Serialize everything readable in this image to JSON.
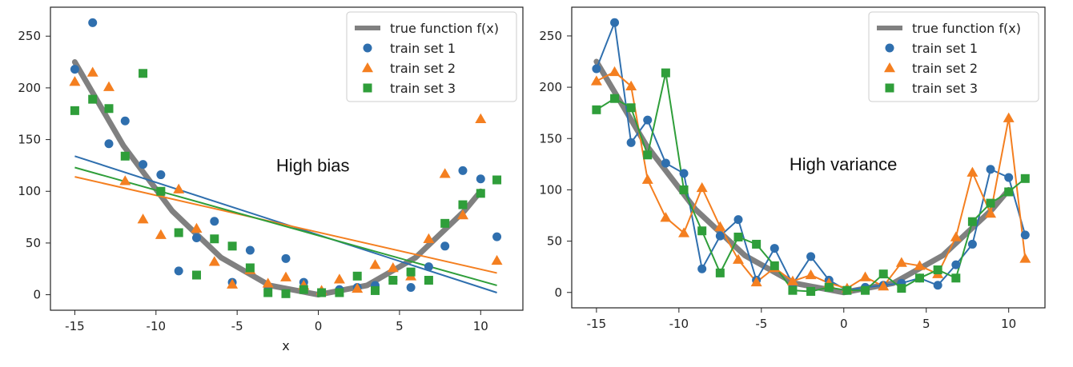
{
  "colors": {
    "true": "#808080",
    "s1": "#2f6fae",
    "s2": "#f47f20",
    "s3": "#2f9e3a"
  },
  "chart_data": [
    {
      "type": "scatter",
      "title": "",
      "xlabel": "x",
      "ylabel": "",
      "xlim": [
        -16.5,
        12.6
      ],
      "ylim": [
        -15,
        278
      ],
      "xticks": [
        -15,
        -10,
        -5,
        0,
        5,
        10
      ],
      "yticks": [
        0,
        50,
        100,
        150,
        200,
        250
      ],
      "annotation": {
        "text": "High bias",
        "x": -2.6,
        "y": 119
      },
      "legend": {
        "location": "top-right",
        "entries": [
          "true function f(x)",
          "train set 1",
          "train set 2",
          "train set 3"
        ]
      },
      "true_function": {
        "name": "true function f(x)",
        "x": [
          -15,
          -12,
          -9,
          -6,
          -3,
          0,
          3,
          6,
          9,
          10
        ],
        "y": [
          225,
          144,
          81,
          36,
          9,
          0,
          9,
          36,
          81,
          100
        ]
      },
      "series": [
        {
          "name": "train set 1",
          "marker": "circle",
          "x": [
            -15,
            -13.9,
            -12.9,
            -11.9,
            -10.8,
            -9.7,
            -8.6,
            -7.5,
            -6.4,
            -5.3,
            -4.2,
            -3.1,
            -2.0,
            -0.9,
            0.2,
            1.3,
            2.4,
            3.5,
            4.6,
            5.7,
            6.8,
            7.8,
            8.9,
            10,
            11
          ],
          "y": [
            218,
            263,
            146,
            168,
            126,
            116,
            23,
            55,
            71,
            12,
            43,
            8,
            35,
            12,
            2,
            5,
            7,
            9,
            14,
            7,
            27,
            47,
            120,
            112,
            56
          ]
        },
        {
          "name": "train set 2",
          "marker": "triangle",
          "x": [
            -15,
            -13.9,
            -12.9,
            -11.9,
            -10.8,
            -9.7,
            -8.6,
            -7.5,
            -6.4,
            -5.3,
            -4.2,
            -3.1,
            -2.0,
            -0.9,
            0.2,
            1.3,
            2.4,
            3.5,
            4.6,
            5.7,
            6.8,
            7.8,
            8.9,
            10,
            11
          ],
          "y": [
            206,
            215,
            201,
            110,
            73,
            58,
            102,
            64,
            32,
            10,
            24,
            11,
            17,
            9,
            4,
            15,
            6,
            29,
            26,
            18,
            54,
            117,
            77,
            170,
            33
          ]
        },
        {
          "name": "train set 3",
          "marker": "square",
          "x": [
            -15,
            -13.9,
            -12.9,
            -11.9,
            -10.8,
            -9.7,
            -8.6,
            -7.5,
            -6.4,
            -5.3,
            -4.2,
            -3.1,
            -2.0,
            -0.9,
            0.2,
            1.3,
            2.4,
            3.5,
            4.6,
            5.7,
            6.8,
            7.8,
            8.9,
            10,
            11
          ],
          "y": [
            178,
            189,
            180,
            134,
            214,
            100,
            60,
            19,
            54,
            47,
            26,
            2,
            1,
            5,
            2,
            2,
            18,
            4,
            14,
            22,
            14,
            69,
            87,
            98,
            111
          ]
        }
      ],
      "fits": [
        {
          "name": "fit set 1",
          "series": "train set 1",
          "x": [
            -15,
            11
          ],
          "y": [
            134,
            2
          ]
        },
        {
          "name": "fit set 2",
          "series": "train set 2",
          "x": [
            -15,
            11
          ],
          "y": [
            114,
            21
          ]
        },
        {
          "name": "fit set 3",
          "series": "train set 3",
          "x": [
            -15,
            11
          ],
          "y": [
            123,
            9
          ]
        }
      ]
    },
    {
      "type": "line",
      "title": "",
      "xlabel": "",
      "ylabel": "",
      "xlim": [
        -16.5,
        12.2
      ],
      "ylim": [
        -15,
        278
      ],
      "xticks": [
        -15,
        -10,
        -5,
        0,
        5,
        10
      ],
      "yticks": [
        0,
        50,
        100,
        150,
        200,
        250
      ],
      "annotation": {
        "text": "High variance",
        "x": -3.3,
        "y": 119
      },
      "legend": {
        "location": "top-right",
        "entries": [
          "true function f(x)",
          "train set 1",
          "train set 2",
          "train set 3"
        ]
      },
      "true_function": {
        "name": "true function f(x)",
        "x": [
          -15,
          -12,
          -9,
          -6,
          -3,
          0,
          3,
          6,
          9,
          10
        ],
        "y": [
          225,
          144,
          81,
          36,
          9,
          0,
          9,
          36,
          81,
          100
        ]
      },
      "series": [
        {
          "name": "train set 1",
          "marker": "circle",
          "x": [
            -15,
            -13.9,
            -12.9,
            -11.9,
            -10.8,
            -9.7,
            -8.6,
            -7.5,
            -6.4,
            -5.3,
            -4.2,
            -3.1,
            -2.0,
            -0.9,
            0.2,
            1.3,
            2.4,
            3.5,
            4.6,
            5.7,
            6.8,
            7.8,
            8.9,
            10,
            11
          ],
          "y": [
            218,
            263,
            146,
            168,
            126,
            116,
            23,
            55,
            71,
            12,
            43,
            8,
            35,
            12,
            2,
            5,
            7,
            9,
            14,
            7,
            27,
            47,
            120,
            112,
            56
          ]
        },
        {
          "name": "train set 2",
          "marker": "triangle",
          "x": [
            -15,
            -13.9,
            -12.9,
            -11.9,
            -10.8,
            -9.7,
            -8.6,
            -7.5,
            -6.4,
            -5.3,
            -4.2,
            -3.1,
            -2.0,
            -0.9,
            0.2,
            1.3,
            2.4,
            3.5,
            4.6,
            5.7,
            6.8,
            7.8,
            8.9,
            10,
            11
          ],
          "y": [
            206,
            215,
            201,
            110,
            73,
            58,
            102,
            64,
            32,
            10,
            24,
            11,
            17,
            9,
            4,
            15,
            6,
            29,
            26,
            18,
            54,
            117,
            77,
            170,
            33
          ]
        },
        {
          "name": "train set 3",
          "marker": "square",
          "x": [
            -15,
            -13.9,
            -12.9,
            -11.9,
            -10.8,
            -9.7,
            -8.6,
            -7.5,
            -6.4,
            -5.3,
            -4.2,
            -3.1,
            -2.0,
            -0.9,
            0.2,
            1.3,
            2.4,
            3.5,
            4.6,
            5.7,
            6.8,
            7.8,
            8.9,
            10,
            11
          ],
          "y": [
            178,
            189,
            180,
            134,
            214,
            100,
            60,
            19,
            54,
            47,
            26,
            2,
            1,
            5,
            2,
            2,
            18,
            4,
            14,
            22,
            14,
            69,
            87,
            98,
            111
          ]
        }
      ]
    }
  ]
}
